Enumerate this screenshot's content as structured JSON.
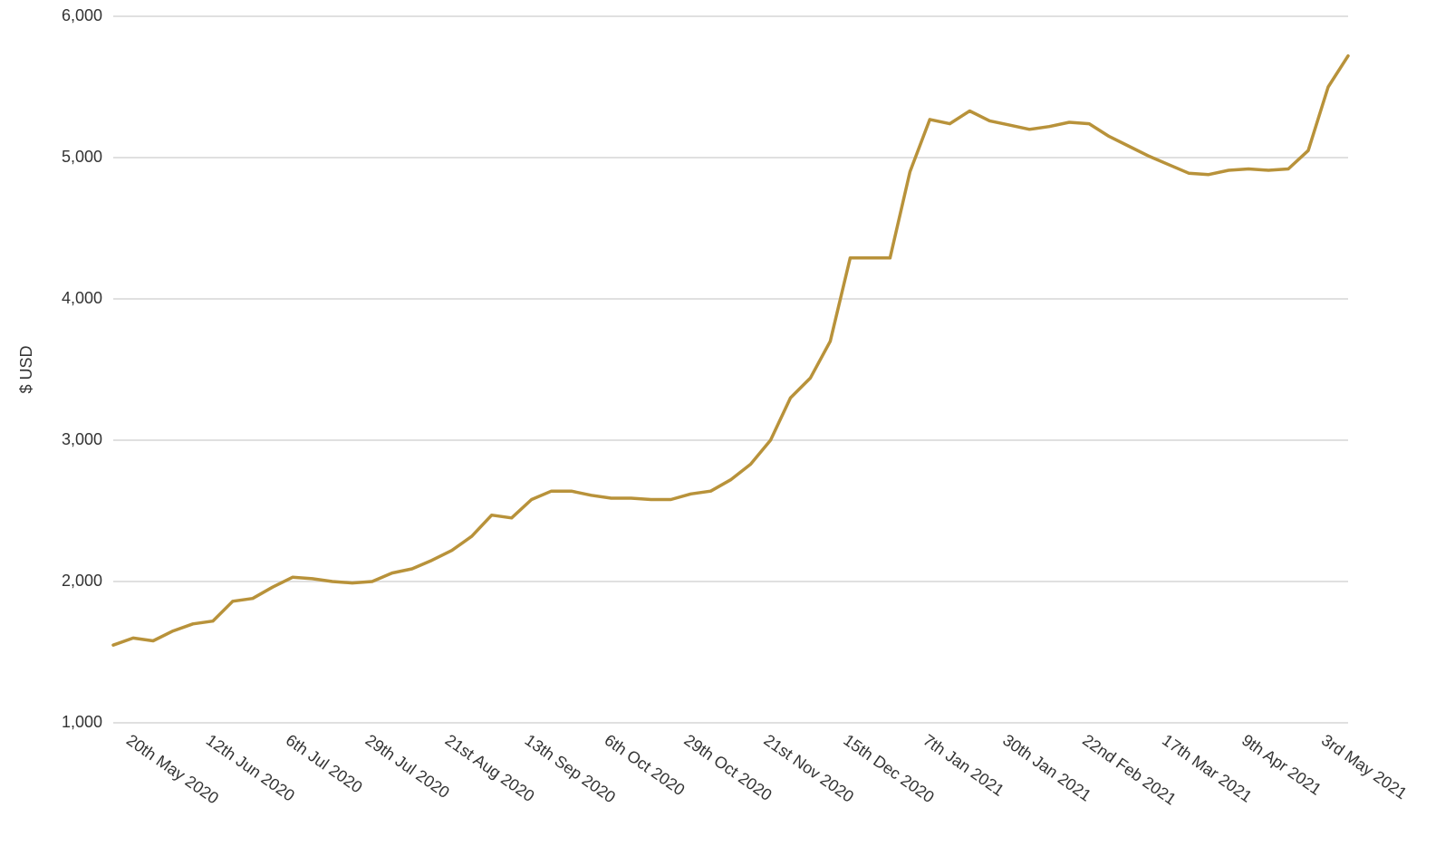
{
  "chart_data": {
    "type": "line",
    "ylabel": "$ USD",
    "categories": [
      null,
      "20th May 2020",
      null,
      null,
      null,
      "12th Jun 2020",
      null,
      null,
      null,
      "6th Jul 2020",
      null,
      null,
      null,
      "29th Jul 2020",
      null,
      null,
      null,
      "21st Aug 2020",
      null,
      null,
      null,
      "13th Sep 2020",
      null,
      null,
      null,
      "6th Oct 2020",
      null,
      null,
      null,
      "29th Oct 2020",
      null,
      null,
      null,
      "21st Nov 2020",
      null,
      null,
      null,
      "15th Dec 2020",
      null,
      null,
      null,
      "7th Jan 2021",
      null,
      null,
      null,
      "30th Jan 2021",
      null,
      null,
      null,
      "22nd Feb 2021",
      null,
      null,
      null,
      "17th Mar 2021",
      null,
      null,
      null,
      "9th Apr 2021",
      null,
      null,
      null,
      "3rd May 2021",
      null
    ],
    "values": [
      1550,
      1600,
      1580,
      1650,
      1700,
      1720,
      1860,
      1880,
      1960,
      2030,
      2020,
      2000,
      1990,
      2000,
      2060,
      2090,
      2150,
      2220,
      2320,
      2470,
      2450,
      2580,
      2640,
      2640,
      2610,
      2590,
      2590,
      2580,
      2580,
      2620,
      2640,
      2720,
      2830,
      3000,
      3300,
      3440,
      3700,
      4290,
      4290,
      4290,
      4900,
      5270,
      5240,
      5330,
      5260,
      5230,
      5200,
      5220,
      5250,
      5240,
      5150,
      5080,
      5010,
      4950,
      4890,
      4880,
      4910,
      4920,
      4910,
      4920,
      5050,
      5500,
      5720
    ],
    "color": "#b8923a",
    "ylim": [
      1000,
      6000
    ],
    "yticks": [
      {
        "value": 1000,
        "label": "1,000"
      },
      {
        "value": 2000,
        "label": "2,000"
      },
      {
        "value": 3000,
        "label": "3,000"
      },
      {
        "value": 4000,
        "label": "4,000"
      },
      {
        "value": 5000,
        "label": "5,000"
      },
      {
        "value": 6000,
        "label": "6,000"
      }
    ],
    "grid": true
  }
}
